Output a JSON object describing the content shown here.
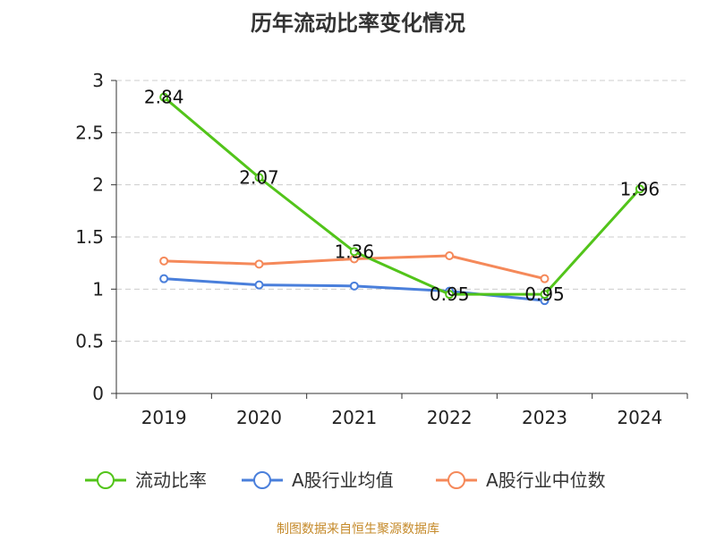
{
  "chart_data": {
    "type": "line",
    "title": "历年流动比率变化情况",
    "categories": [
      "2019",
      "2020",
      "2021",
      "2022",
      "2023",
      "2024"
    ],
    "ylim": [
      0,
      3
    ],
    "yticks": [
      "0",
      "0.5",
      "1",
      "1.5",
      "2",
      "2.5",
      "3"
    ],
    "ytick_values": [
      0,
      0.5,
      1,
      1.5,
      2,
      2.5,
      3
    ],
    "grid": true,
    "legend_position": "bottom",
    "series": [
      {
        "name": "流动比率",
        "color": "#52c41a",
        "values": [
          2.84,
          2.07,
          1.36,
          0.95,
          0.95,
          1.96
        ],
        "labels": [
          "2.84",
          "2.07",
          "1.36",
          "0.95",
          "0.95",
          "1.96"
        ]
      },
      {
        "name": "A股行业均值",
        "color": "#4a7fdb",
        "values": [
          1.1,
          1.04,
          1.03,
          0.98,
          0.89,
          null
        ]
      },
      {
        "name": "A股行业中位数",
        "color": "#f5895a",
        "values": [
          1.27,
          1.24,
          1.29,
          1.32,
          1.1,
          null
        ]
      }
    ],
    "source": "制图数据来自恒生聚源数据库"
  }
}
